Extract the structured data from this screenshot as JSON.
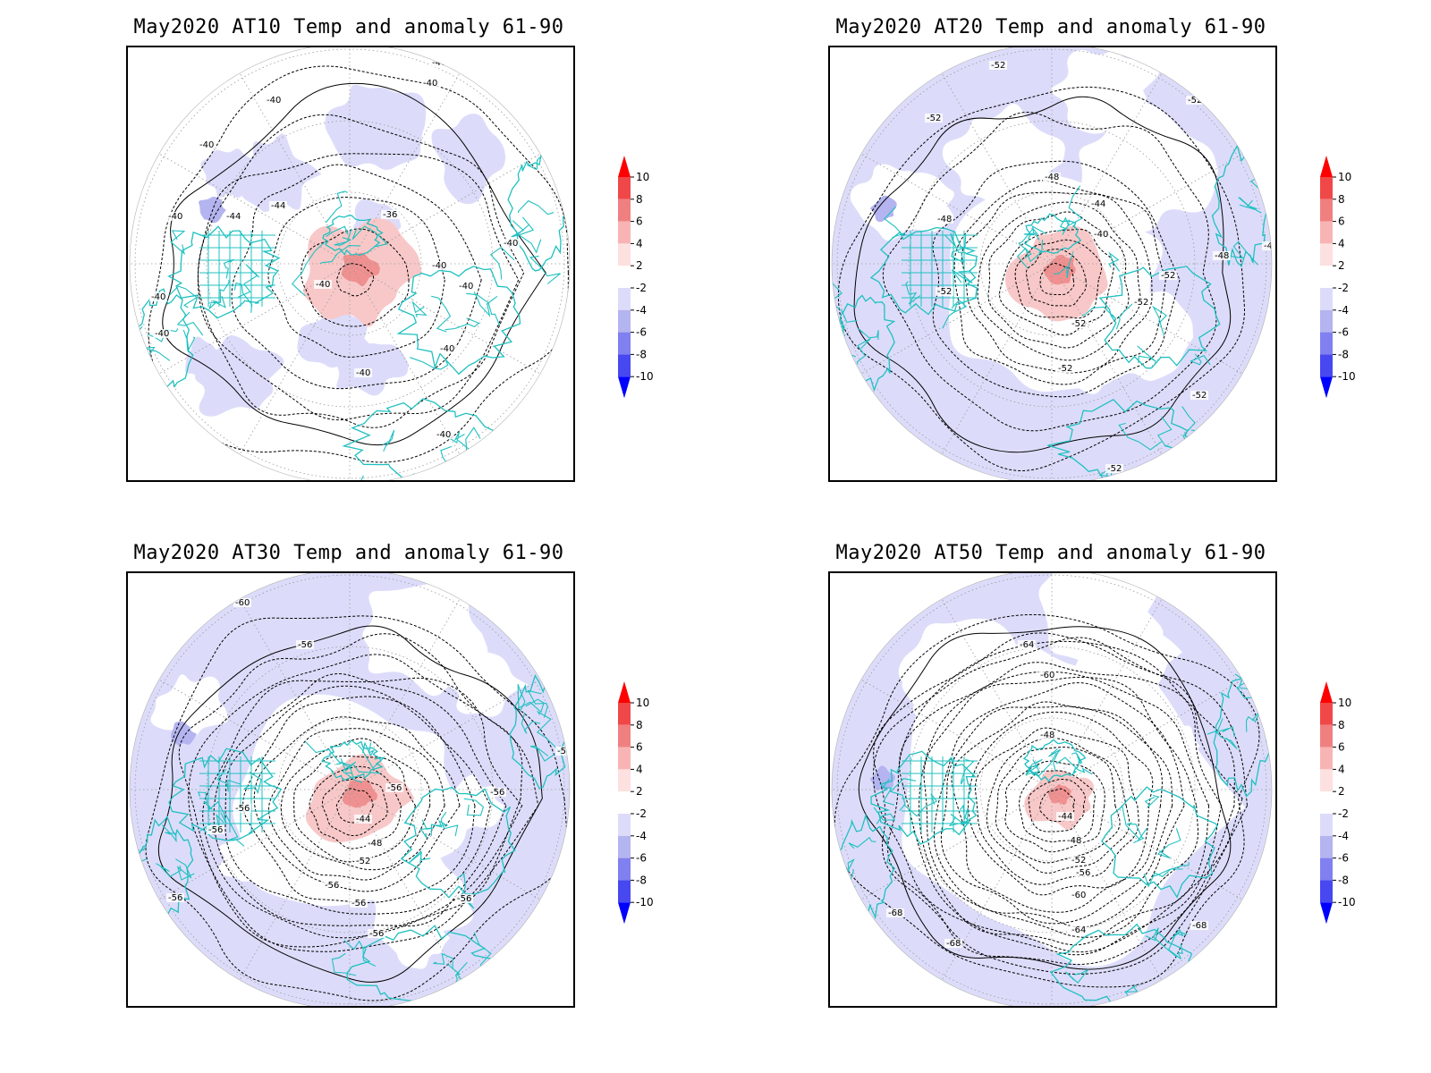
{
  "panels": [
    {
      "id": "at10",
      "title": "May2020 AT10 Temp and anomaly 61-90",
      "contour_labels": [
        "-40",
        "-40",
        "-40",
        "-40",
        "-40",
        "-44",
        "-44",
        "-36",
        "-40",
        "-40",
        "-40",
        "-40",
        "-40",
        "-40",
        "-40",
        "-40",
        "-40",
        "-40",
        "-40"
      ],
      "center_anom": "warm",
      "bg_anom": "mixed"
    },
    {
      "id": "at20",
      "title": "May2020 AT20 Temp and anomaly 61-90",
      "contour_labels": [
        "-52",
        "-52",
        "-52",
        "-48",
        "-44",
        "-48",
        "-40",
        "-52",
        "-52",
        "-48",
        "-52",
        "-52",
        "-48",
        "-52",
        "-52",
        "-52",
        "-52",
        "-52"
      ],
      "center_anom": "warm",
      "bg_anom": "cool"
    },
    {
      "id": "at30",
      "title": "May2020 AT30 Temp and anomaly 61-90",
      "contour_labels": [
        "-60",
        "-56",
        "-56",
        "-56",
        "-56",
        "-56",
        "-44",
        "-48",
        "-52",
        "-56",
        "-56",
        "-56",
        "-56",
        "-56",
        "-56"
      ],
      "center_anom": "warm",
      "bg_anom": "cool"
    },
    {
      "id": "at50",
      "title": "May2020 AT50 Temp and anomaly 61-90",
      "contour_labels": [
        "-64",
        "-60",
        "-48",
        "-44",
        "-48",
        "-52",
        "-56",
        "-60",
        "-64",
        "-68",
        "-68",
        "-68"
      ],
      "center_anom": "warm",
      "bg_anom": "cool"
    }
  ],
  "colorbar": {
    "labels": [
      "10",
      "8",
      "6",
      "4",
      "2",
      "-2",
      "-4",
      "-6",
      "-8",
      "-10"
    ],
    "colors": [
      "#ff0000",
      "#f04848",
      "#f08080",
      "#f8b4b4",
      "#fde0e0",
      "#ffffff",
      "#dcdcfa",
      "#b4b4f0",
      "#8080f0",
      "#4848f0",
      "#0000ff"
    ]
  },
  "colors": {
    "coast": "#20c0c0",
    "cool_fill": "#dcdcfa",
    "cool_mid": "#b4b4f0",
    "warm_fill": "#f8c8c8",
    "warm_mid": "#f09090"
  }
}
